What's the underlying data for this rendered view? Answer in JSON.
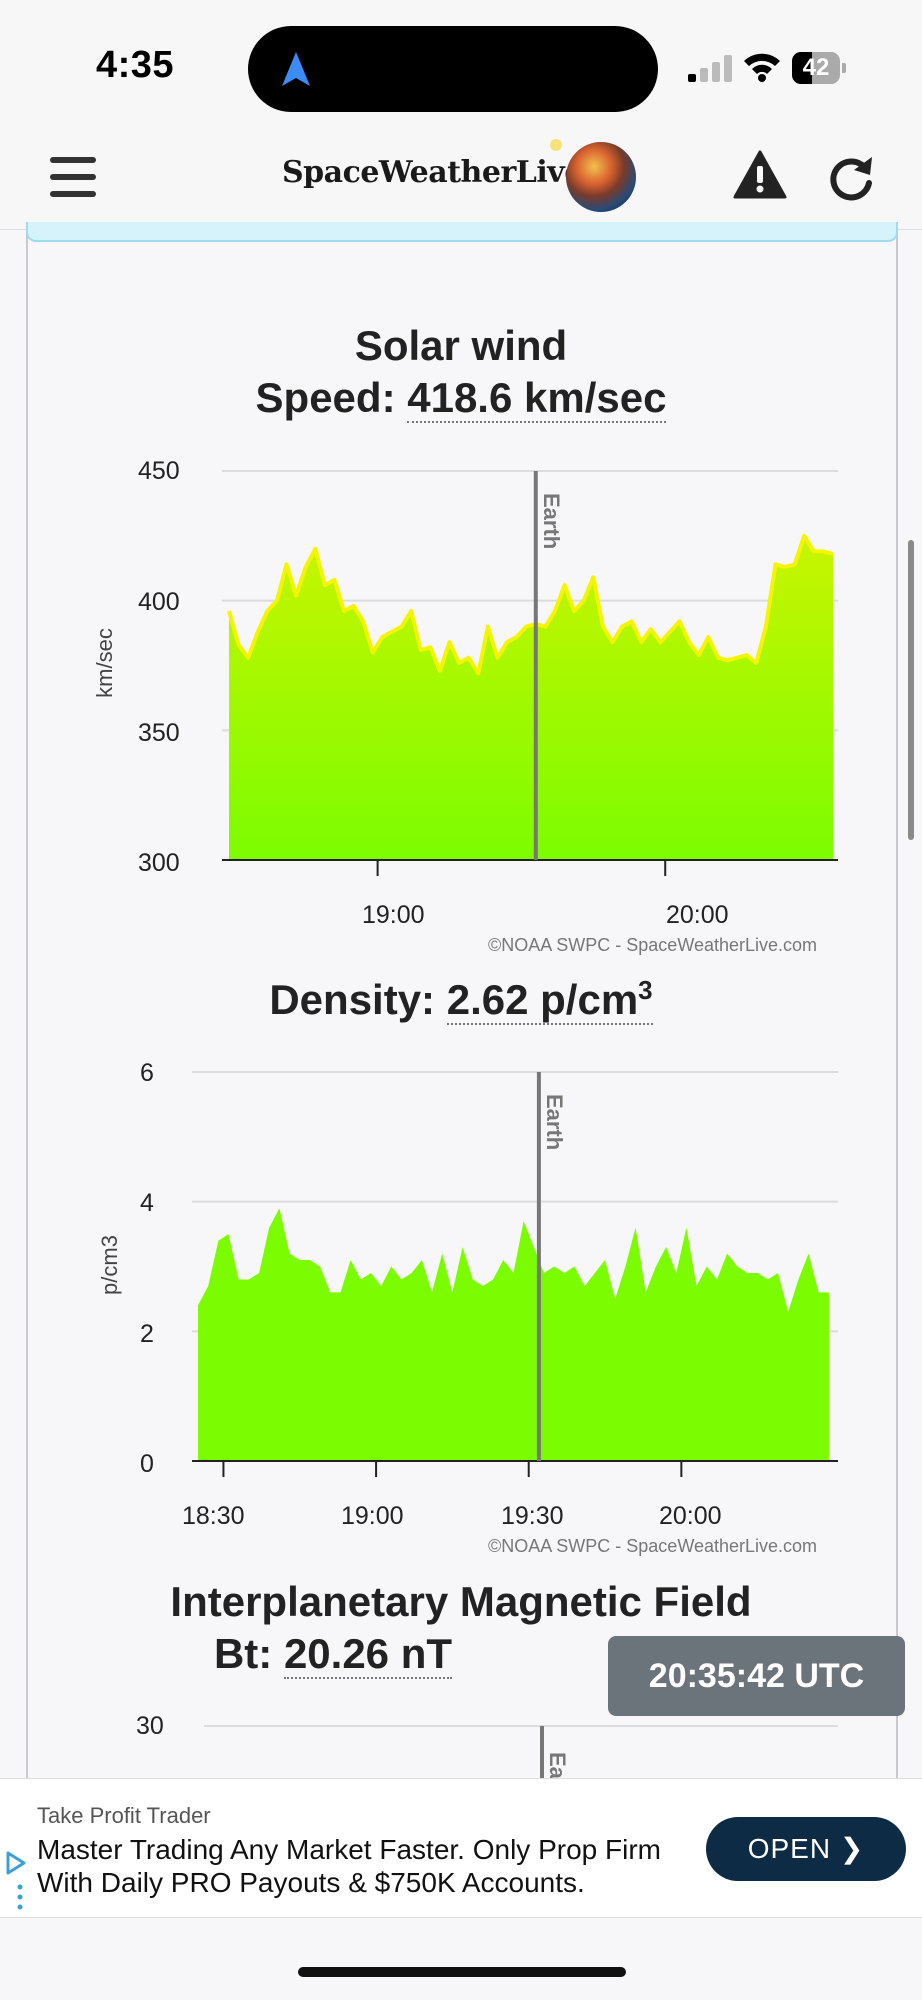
{
  "status_bar": {
    "time": "4:35",
    "battery": "42",
    "battery_level": 0.42
  },
  "header": {
    "logo_text": "SpaceWeatherLive"
  },
  "solar_wind": {
    "title": "Solar wind",
    "speed_label": "Speed:",
    "speed_value": "418.6 km/sec",
    "ylabel": "km/sec",
    "yticks": [
      "450",
      "400",
      "350",
      "300"
    ],
    "xticks": [
      "19:00",
      "20:00"
    ],
    "earth_label": "Earth",
    "credit": "©NOAA SWPC - SpaceWeatherLive.com"
  },
  "density": {
    "label": "Density:",
    "value": "2.62 p/cm",
    "value_sup": "3",
    "ylabel": "p/cm3",
    "yticks": [
      "6",
      "4",
      "2",
      "0"
    ],
    "xticks": [
      "18:30",
      "19:00",
      "19:30",
      "20:00"
    ],
    "earth_label": "Earth",
    "credit": "©NOAA SWPC - SpaceWeatherLive.com"
  },
  "imf": {
    "title": "Interplanetary Magnetic Field",
    "bt_label": "Bt:",
    "bt_value": "20.26 nT",
    "ytick_top": "30",
    "earth_label": "Ea"
  },
  "utc_clock": "20:35:42 UTC",
  "ad": {
    "advertiser": "Take Profit Trader",
    "text": "Master Trading Any Market Faster. Only Prop Firm With Daily PRO Payouts & $750K Accounts.",
    "button": "OPEN"
  },
  "colors": {
    "speed_fill_top": "#c8f500",
    "speed_fill_bottom": "#7cfc00",
    "speed_line": "#f5f500",
    "density_fill": "#7cfc00",
    "earth_line": "#777777"
  },
  "chart_data": [
    {
      "type": "area",
      "title": "Solar wind",
      "ylabel": "km/sec",
      "ylim": [
        300,
        450
      ],
      "x_range": [
        "18:29",
        "20:35"
      ],
      "earth_marker": "19:33",
      "x": [
        "18:29",
        "18:31",
        "18:33",
        "18:35",
        "18:37",
        "18:39",
        "18:41",
        "18:43",
        "18:45",
        "18:47",
        "18:49",
        "18:51",
        "18:53",
        "18:55",
        "18:57",
        "18:59",
        "19:01",
        "19:03",
        "19:05",
        "19:07",
        "19:09",
        "19:11",
        "19:13",
        "19:15",
        "19:17",
        "19:19",
        "19:21",
        "19:23",
        "19:25",
        "19:27",
        "19:29",
        "19:31",
        "19:33",
        "19:35",
        "19:37",
        "19:39",
        "19:41",
        "19:43",
        "19:45",
        "19:47",
        "19:49",
        "19:51",
        "19:53",
        "19:55",
        "19:57",
        "19:59",
        "20:01",
        "20:03",
        "20:05",
        "20:07",
        "20:09",
        "20:11",
        "20:13",
        "20:15",
        "20:17",
        "20:19",
        "20:21",
        "20:23",
        "20:25",
        "20:27",
        "20:29",
        "20:31",
        "20:33",
        "20:35"
      ],
      "values": [
        396,
        383,
        378,
        388,
        396,
        400,
        414,
        402,
        413,
        420,
        406,
        408,
        396,
        398,
        392,
        380,
        386,
        388,
        390,
        396,
        381,
        382,
        373,
        384,
        376,
        378,
        372,
        390,
        378,
        384,
        386,
        390,
        391,
        390,
        396,
        406,
        396,
        400,
        409,
        390,
        384,
        390,
        392,
        384,
        389,
        384,
        388,
        392,
        384,
        379,
        386,
        378,
        377,
        378,
        379,
        376,
        390,
        414,
        413,
        414,
        425,
        419,
        419,
        418
      ]
    },
    {
      "type": "area",
      "title": "Density: 2.62 p/cm3",
      "ylabel": "p/cm3",
      "ylim": [
        0,
        6
      ],
      "x_range": [
        "18:25",
        "20:30"
      ],
      "earth_marker": "19:32",
      "x": [
        "18:25",
        "18:27",
        "18:29",
        "18:31",
        "18:33",
        "18:35",
        "18:37",
        "18:39",
        "18:41",
        "18:43",
        "18:45",
        "18:47",
        "18:49",
        "18:51",
        "18:53",
        "18:55",
        "18:57",
        "18:59",
        "19:01",
        "19:03",
        "19:05",
        "19:07",
        "19:09",
        "19:11",
        "19:13",
        "19:15",
        "19:17",
        "19:19",
        "19:21",
        "19:23",
        "19:25",
        "19:27",
        "19:29",
        "19:31",
        "19:33",
        "19:35",
        "19:37",
        "19:39",
        "19:41",
        "19:43",
        "19:45",
        "19:47",
        "19:49",
        "19:51",
        "19:53",
        "19:55",
        "19:57",
        "19:59",
        "20:01",
        "20:03",
        "20:05",
        "20:07",
        "20:09",
        "20:11",
        "20:13",
        "20:15",
        "20:17",
        "20:19",
        "20:21",
        "20:23",
        "20:25",
        "20:27",
        "20:29"
      ],
      "values": [
        2.4,
        2.7,
        3.4,
        3.5,
        2.8,
        2.8,
        2.9,
        3.6,
        3.9,
        3.2,
        3.1,
        3.1,
        3.0,
        2.6,
        2.6,
        3.1,
        2.8,
        2.9,
        2.7,
        3.0,
        2.8,
        2.9,
        3.1,
        2.6,
        3.2,
        2.6,
        3.3,
        2.8,
        2.7,
        2.8,
        3.1,
        2.9,
        3.7,
        3.3,
        2.9,
        3.0,
        2.9,
        3.0,
        2.7,
        2.9,
        3.1,
        2.5,
        3.0,
        3.6,
        2.6,
        3.0,
        3.3,
        2.9,
        3.6,
        2.7,
        3.0,
        2.8,
        3.2,
        3.0,
        2.9,
        2.9,
        2.8,
        2.9,
        2.3,
        2.8,
        3.2,
        2.6,
        2.6
      ]
    }
  ]
}
